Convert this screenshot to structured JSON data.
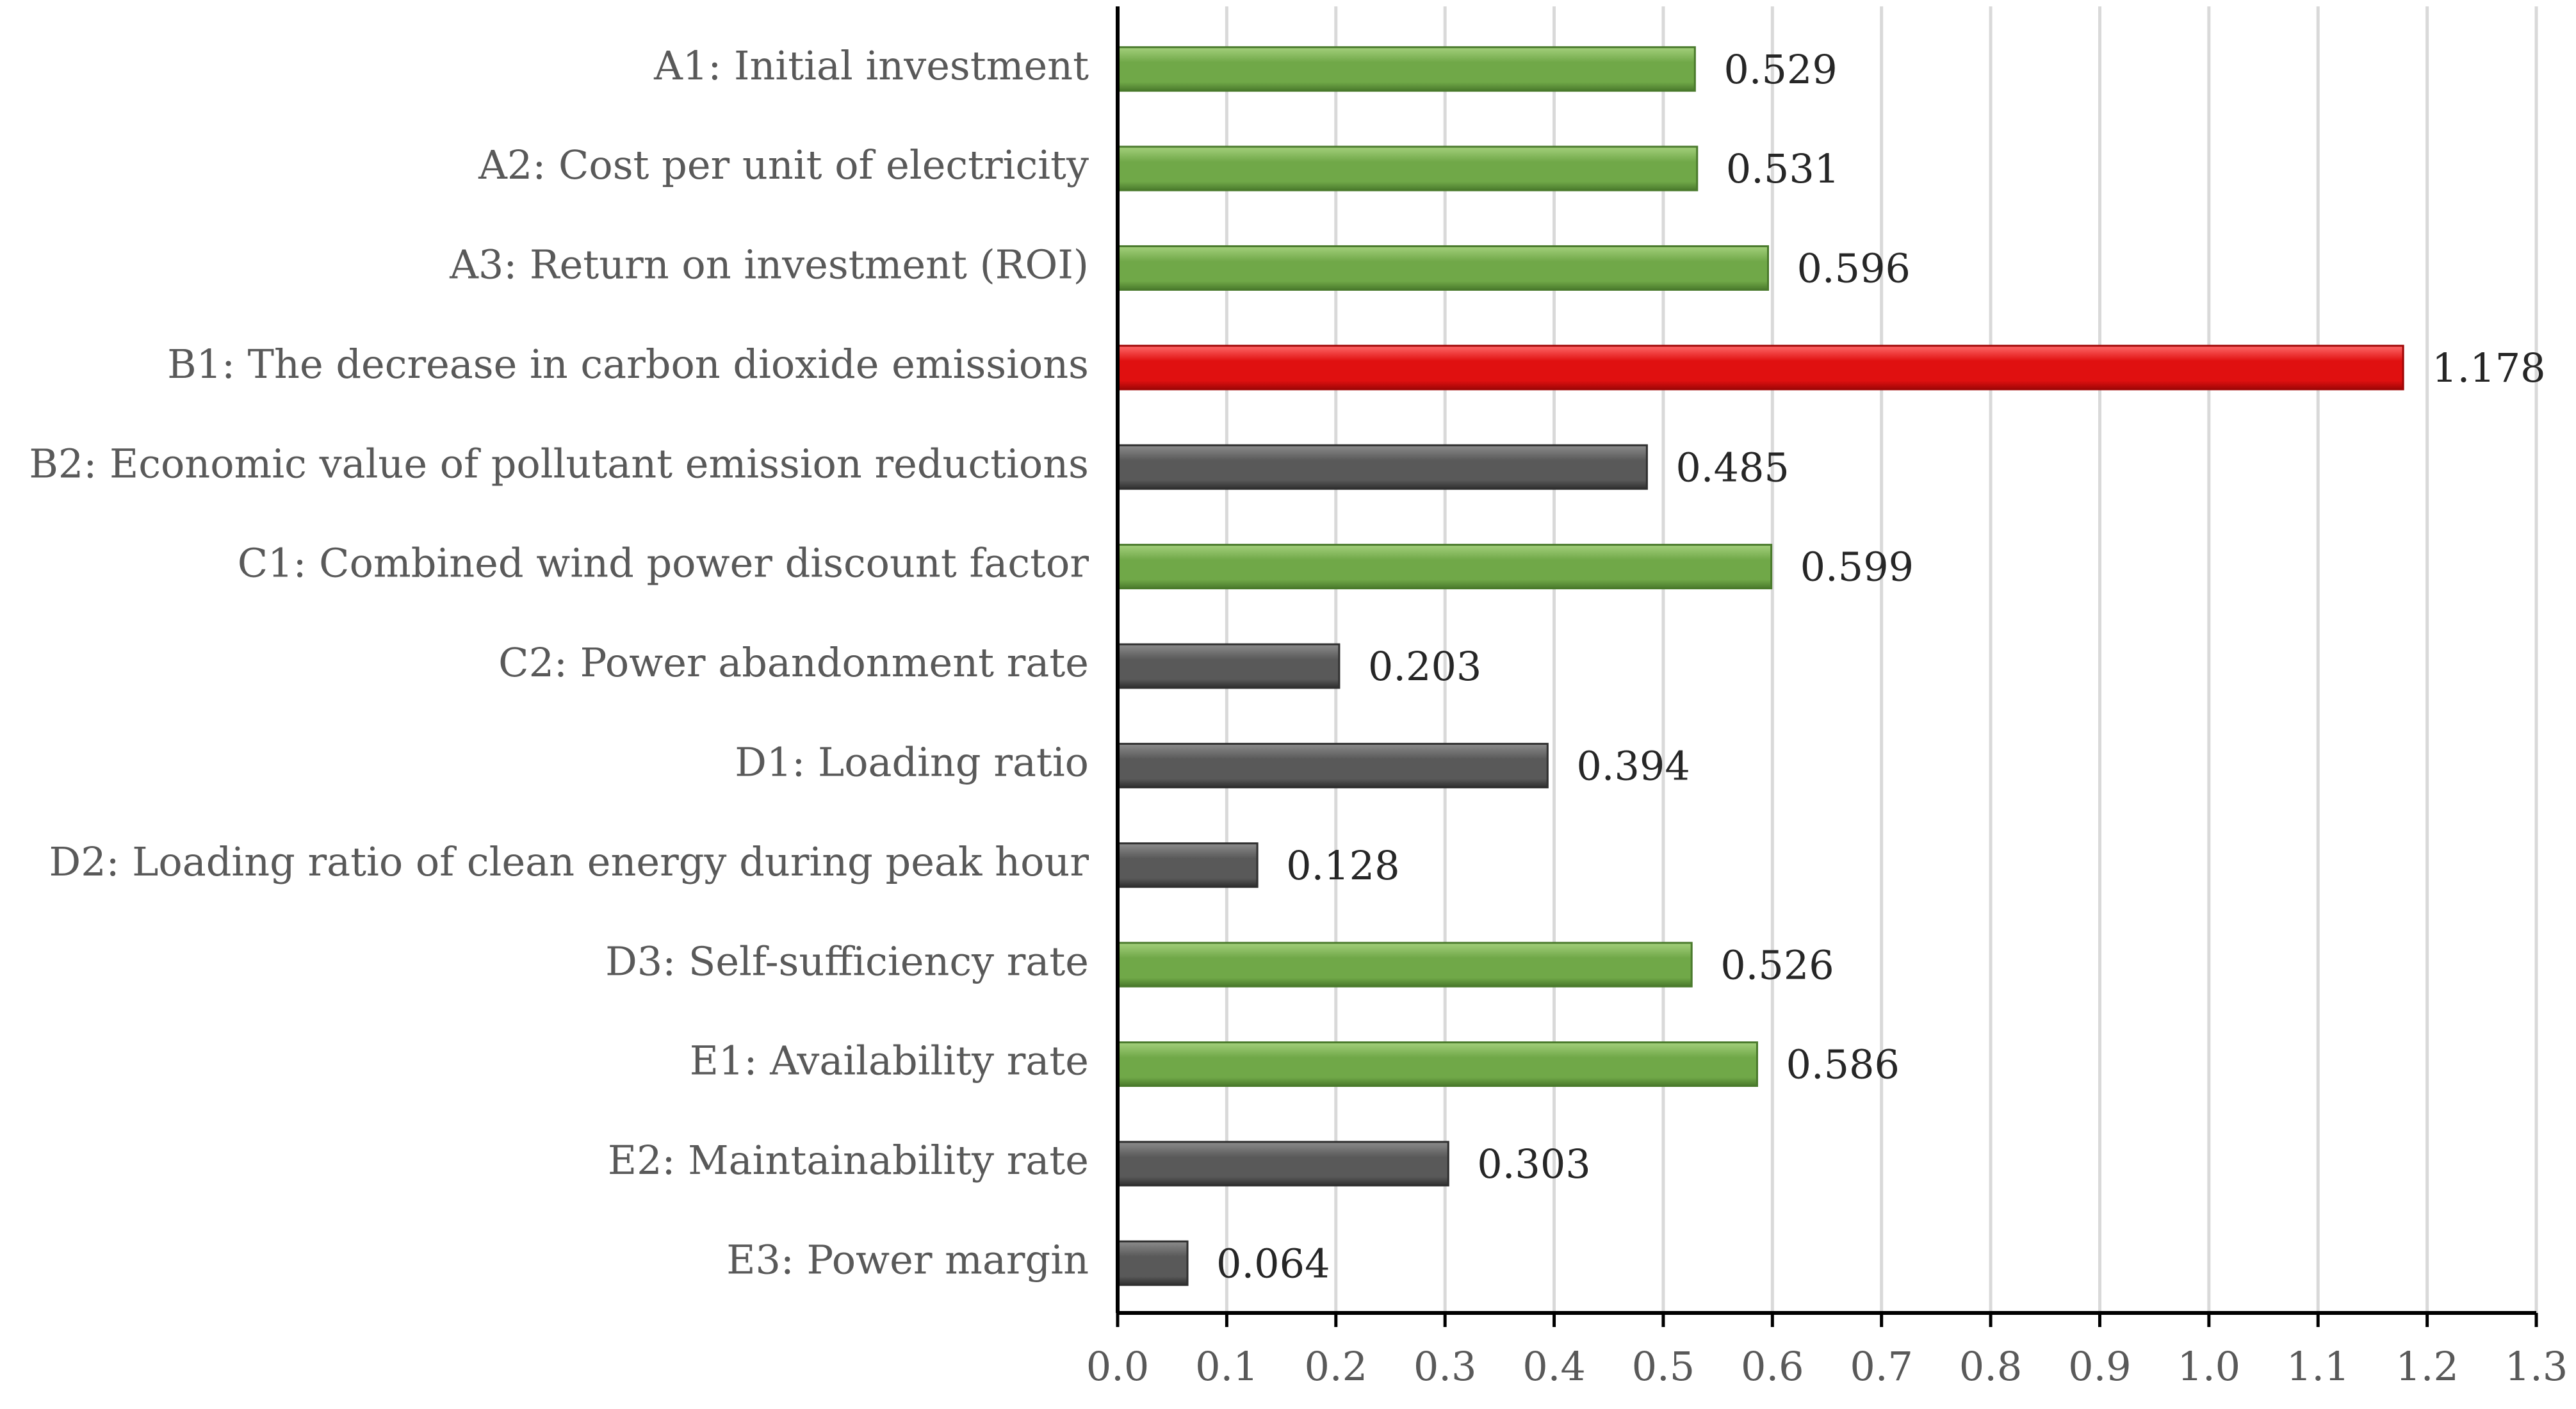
{
  "chart_data": {
    "type": "bar",
    "orientation": "horizontal",
    "title": "",
    "xlabel": "",
    "ylabel": "",
    "xlim": [
      0.0,
      1.3
    ],
    "grid": true,
    "tick_step": 0.1,
    "categories": [
      "A1: Initial investment",
      "A2: Cost per unit of electricity",
      "A3: Return on investment (ROI)",
      "B1: The decrease in carbon dioxide emissions",
      "B2: Economic value of pollutant emission reductions",
      "C1: Combined wind power discount factor",
      "C2: Power abandonment rate",
      "D1: Loading ratio",
      "D2: Loading ratio of clean energy during peak hour",
      "D3: Self-sufficiency rate",
      "E1: Availability rate",
      "E2: Maintainability rate",
      "E3: Power margin"
    ],
    "values": [
      0.529,
      0.531,
      0.596,
      1.178,
      0.485,
      0.599,
      0.203,
      0.394,
      0.128,
      0.526,
      0.586,
      0.303,
      0.064
    ],
    "value_labels": [
      "0.529",
      "0.531",
      "0.596",
      "1.178",
      "0.485",
      "0.599",
      "0.203",
      "0.394",
      "0.128",
      "0.526",
      "0.586",
      "0.303",
      "0.064"
    ],
    "bar_groups": [
      "green",
      "green",
      "green",
      "red",
      "gray",
      "green",
      "gray",
      "gray",
      "gray",
      "green",
      "green",
      "gray",
      "gray"
    ],
    "tick_labels": [
      "0.0",
      "0.1",
      "0.2",
      "0.3",
      "0.4",
      "0.5",
      "0.6",
      "0.7",
      "0.8",
      "0.9",
      "1.0",
      "1.1",
      "1.2",
      "1.3"
    ],
    "colors": {
      "green": "#70a848",
      "green_dark": "#4a7a2c",
      "green_light": "#a4d07c",
      "red": "#e01010",
      "red_dark": "#a00606",
      "red_light": "#ff6a6a",
      "gray": "#595959",
      "gray_dark": "#2f2f2f",
      "gray_light": "#8c8c8c",
      "grid": "#d9d9d9",
      "axis": "#000000"
    }
  }
}
